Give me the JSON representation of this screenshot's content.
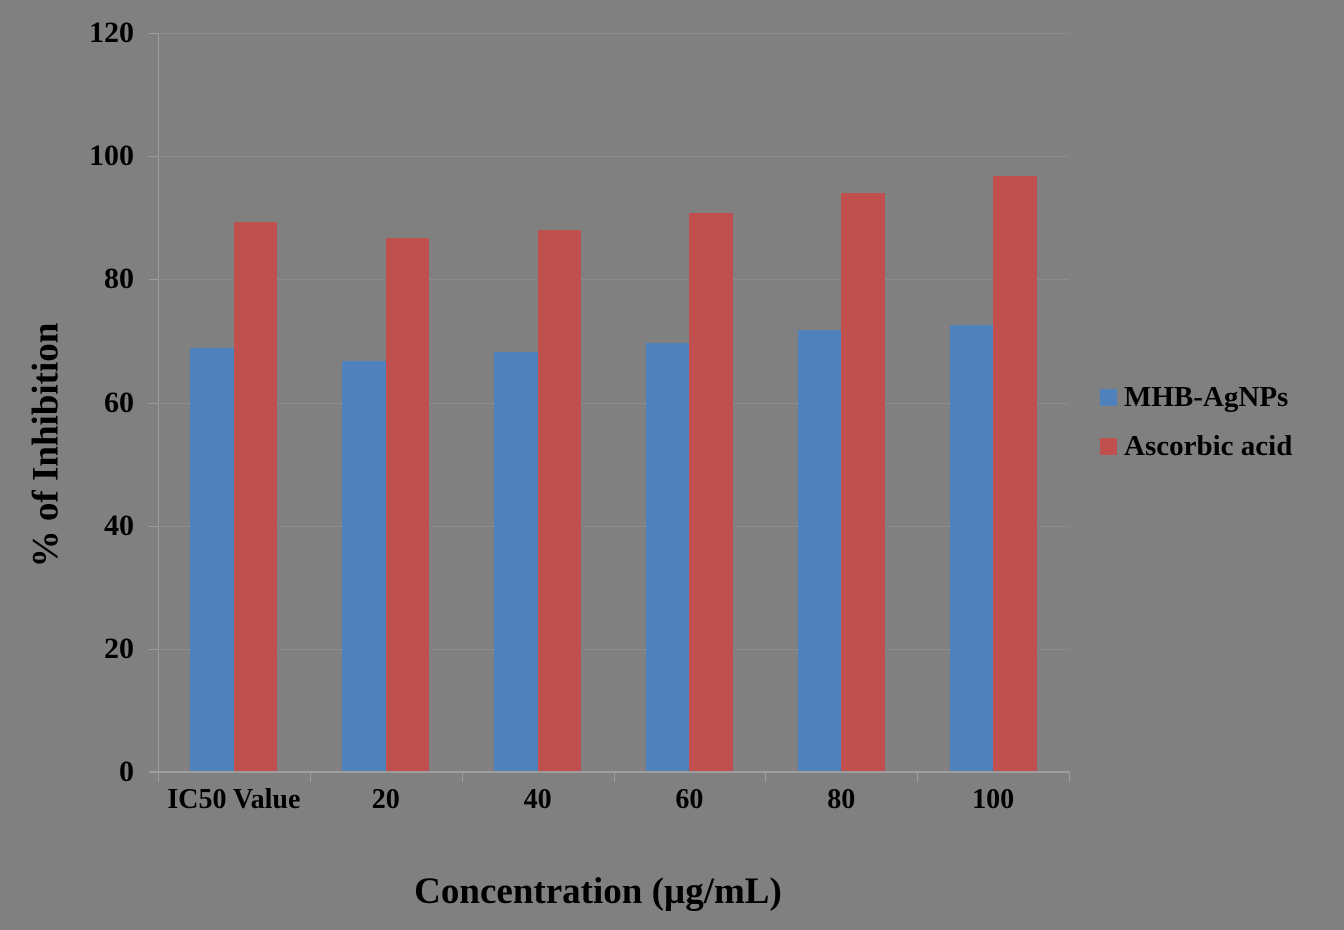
{
  "figure": {
    "background_color": "#808080",
    "gridline_color": "#8c8c8c",
    "axis_color": "#9e9e9e"
  },
  "chart_data": {
    "type": "bar",
    "title": "",
    "xlabel": "Concentration (µg/mL)",
    "ylabel": "% of Inhibition",
    "categories": [
      "IC50 Value",
      "20",
      "40",
      "60",
      "80",
      "100"
    ],
    "series": [
      {
        "name": "MHB-AgNPs",
        "color": "#4F81BD",
        "values": [
          68.9,
          66.7,
          68.2,
          69.7,
          71.8,
          72.6
        ]
      },
      {
        "name": "Ascorbic acid",
        "color": "#C0504D",
        "values": [
          89.3,
          86.7,
          88.0,
          90.8,
          94.0,
          96.8
        ]
      }
    ],
    "ylim": [
      0,
      120
    ],
    "y_ticks": [
      0,
      20,
      40,
      60,
      80,
      100,
      120
    ],
    "grid": true,
    "legend_position": "right"
  }
}
